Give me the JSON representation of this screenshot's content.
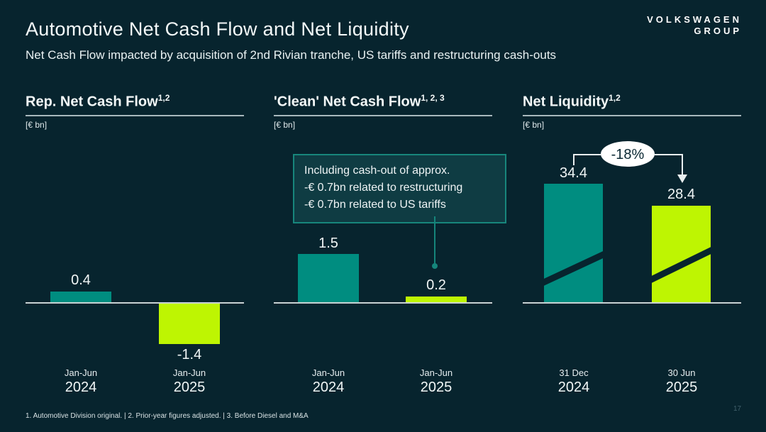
{
  "page": {
    "title": "Automotive Net Cash Flow and Net Liquidity",
    "subtitle": "Net Cash Flow impacted by acquisition of 2nd Rivian tranche, US tariffs and restructuring cash-outs",
    "logo": {
      "line1": "VOLKSWAGEN",
      "line2": "GROUP"
    },
    "footnote": "1. Automotive Division original. | 2. Prior-year figures adjusted. | 3. Before Diesel and M&A",
    "page_number": "17"
  },
  "colors": {
    "background": "#07242e",
    "teal_bar": "#008d80",
    "lime_bar": "#bef502",
    "axis_line": "#c9d2d4",
    "callout_border": "#17867c",
    "callout_background": "#0f3c43",
    "delta_bubble_fill": "#ffffff",
    "text": "#f2f7f7"
  },
  "chart_data": [
    {
      "type": "bar",
      "title": "Rep. Net Cash Flow",
      "title_superscript": "1,2",
      "unit": "[€ bn]",
      "categories": [
        {
          "period": "Jan-Jun",
          "year": "2024"
        },
        {
          "period": "Jan-Jun",
          "year": "2025"
        }
      ],
      "values": [
        0.4,
        -1.4
      ],
      "value_labels": [
        "0.4",
        "-1.4"
      ],
      "series_colors": [
        "#008d80",
        "#bef502"
      ],
      "ylim": [
        -1.6,
        0.8
      ]
    },
    {
      "type": "bar",
      "title": "'Clean' Net Cash Flow",
      "title_superscript": "1, 2, 3",
      "unit": "[€ bn]",
      "categories": [
        {
          "period": "Jan-Jun",
          "year": "2024"
        },
        {
          "period": "Jan-Jun",
          "year": "2025"
        }
      ],
      "values": [
        1.5,
        0.2
      ],
      "value_labels": [
        "1.5",
        "0.2"
      ],
      "series_colors": [
        "#008d80",
        "#bef502"
      ],
      "ylim": [
        0,
        2.0
      ],
      "callout": {
        "lines": [
          "Including cash-out of approx.",
          "-€ 0.7bn related to restructuring",
          "-€ 0.7bn related to US tariffs"
        ],
        "points_to": "Jan-Jun 2025 bar"
      }
    },
    {
      "type": "bar",
      "title": "Net Liquidity",
      "title_superscript": "1,2",
      "unit": "[€ bn]",
      "categories": [
        {
          "period": "31 Dec",
          "year": "2024"
        },
        {
          "period": "30 Jun",
          "year": "2025"
        }
      ],
      "values": [
        34.4,
        28.4
      ],
      "value_labels": [
        "34.4",
        "28.4"
      ],
      "series_colors": [
        "#008d80",
        "#bef502"
      ],
      "delta_label": "-18%",
      "axis_break": true
    }
  ]
}
